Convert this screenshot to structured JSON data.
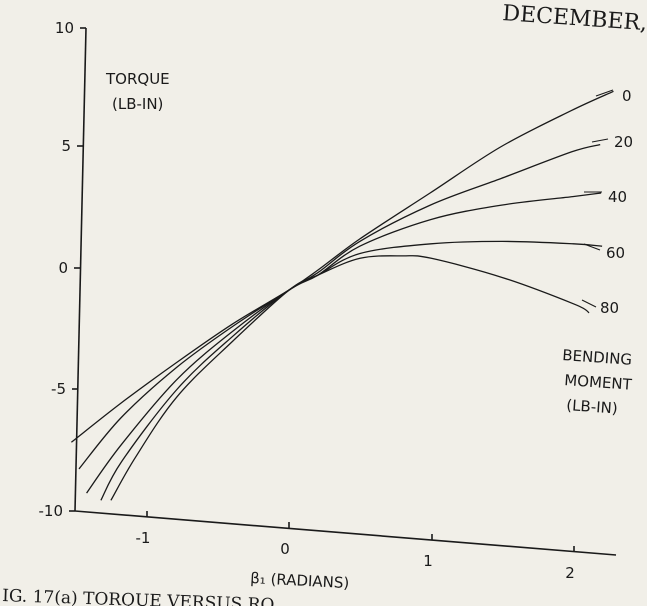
{
  "header_fragment": "DECEMBER,",
  "caption": "IG. 17(a)   TORQUE VERSUS RO",
  "chart_data": {
    "type": "line",
    "title": "",
    "ylabel": "TORQUE (LB-IN)",
    "ylabel_lines": [
      "TORQUE",
      "(LB-IN)"
    ],
    "xlabel": "β₁ (RADIANS)",
    "xlim": [
      -1.55,
      2.3
    ],
    "ylim": [
      -10,
      10
    ],
    "xticks": [
      -1,
      0,
      1,
      2
    ],
    "xtick_labels": [
      "-1",
      "0",
      "1",
      "2"
    ],
    "yticks": [
      10,
      5,
      0,
      -5,
      -10
    ],
    "ytick_labels": [
      "10",
      "5",
      "0",
      "-5",
      "-10"
    ],
    "legend_title_lines": [
      "BENDING",
      "MOMENT",
      "(LB-IN)"
    ],
    "grid": false,
    "series": [
      {
        "name": "0",
        "x": [
          -1.55,
          -1.2,
          -0.8,
          -0.4,
          0,
          0.2,
          0.5,
          1.0,
          1.5,
          2.0,
          2.3
        ],
        "y": [
          -7.2,
          -5.6,
          -3.9,
          -2.3,
          -0.9,
          -0.1,
          1.2,
          3.1,
          5.0,
          6.5,
          7.3
        ]
      },
      {
        "name": "20",
        "x": [
          -1.5,
          -1.2,
          -0.8,
          -0.4,
          0,
          0.2,
          0.5,
          1.0,
          1.5,
          2.0,
          2.2
        ],
        "y": [
          -8.3,
          -6.2,
          -4.1,
          -2.4,
          -0.9,
          -0.2,
          1.1,
          2.6,
          3.7,
          4.8,
          5.1
        ]
      },
      {
        "name": "40",
        "x": [
          -1.45,
          -1.2,
          -0.8,
          -0.4,
          0,
          0.2,
          0.5,
          1.0,
          1.5,
          2.0,
          2.2
        ],
        "y": [
          -9.3,
          -7.3,
          -4.6,
          -2.6,
          -0.9,
          -0.3,
          0.9,
          2.0,
          2.6,
          2.95,
          3.1
        ]
      },
      {
        "name": "60",
        "x": [
          -1.35,
          -1.2,
          -0.8,
          -0.4,
          0,
          0.2,
          0.5,
          1.0,
          1.5,
          2.0,
          2.2
        ],
        "y": [
          -9.6,
          -8.0,
          -5.0,
          -2.8,
          -0.9,
          -0.3,
          0.6,
          1.0,
          1.1,
          1.0,
          0.9
        ]
      },
      {
        "name": "80",
        "x": [
          -1.28,
          -1.1,
          -0.8,
          -0.4,
          0,
          0.2,
          0.5,
          0.8,
          1.0,
          1.5,
          2.0,
          2.1
        ],
        "y": [
          -9.6,
          -7.8,
          -5.3,
          -3.0,
          -0.9,
          -0.3,
          0.4,
          0.5,
          0.4,
          -0.4,
          -1.5,
          -1.85
        ]
      }
    ]
  }
}
